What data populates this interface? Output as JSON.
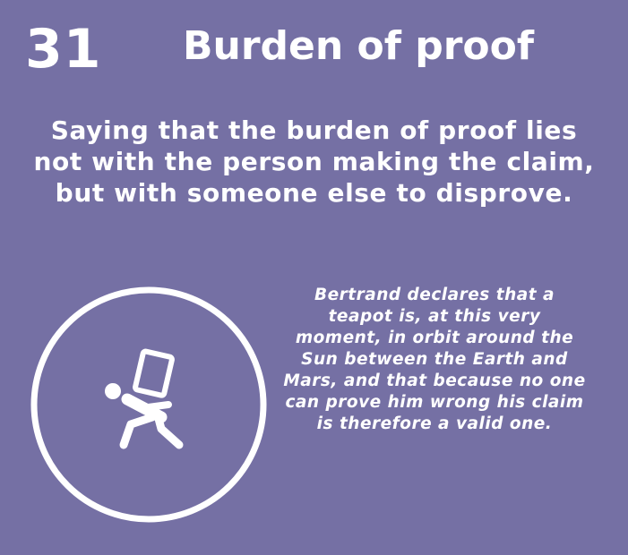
{
  "card": {
    "number": "31",
    "title": "Burden of proof",
    "definition": "Saying that the burden of proof lies not with the person making the claim, but with someone else to disprove.",
    "example": "Bertrand declares that a teapot is, at this very moment, in orbit around the Sun between the Earth and Mars, and that because no one can prove him wrong his claim is therefore a valid one.",
    "icon": "person-carrying-box-icon"
  },
  "colors": {
    "background": "#7570a4",
    "foreground": "#ffffff"
  }
}
